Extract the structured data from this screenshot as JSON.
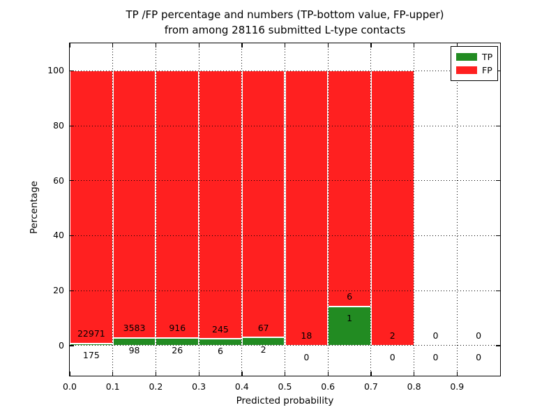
{
  "figure": {
    "title_line1": "TP /FP percentage and numbers (TP-bottom value, FP-upper)",
    "title_line2": "from among 28116 submitted L-type contacts",
    "xlabel": "Predicted probability",
    "ylabel": "Percentage"
  },
  "legend": {
    "items": [
      {
        "label": "TP",
        "color": "#228b22"
      },
      {
        "label": "FP",
        "color": "#ff2020"
      }
    ]
  },
  "chart_data": {
    "type": "bar",
    "stacked": true,
    "title": "TP /FP percentage and numbers (TP-bottom value, FP-upper) from among 28116 submitted L-type contacts",
    "total_contacts": 28116,
    "xlabel": "Predicted probability",
    "ylabel": "Percentage",
    "xlim": [
      0.0,
      1.0
    ],
    "ylim": [
      -11,
      110
    ],
    "bin_width": 0.1,
    "bin_starts": [
      0.0,
      0.1,
      0.2,
      0.3,
      0.4,
      0.5,
      0.6,
      0.7,
      0.8,
      0.9
    ],
    "xtick_labels": [
      "0.0",
      "0.1",
      "0.2",
      "0.3",
      "0.4",
      "0.5",
      "0.6",
      "0.7",
      "0.8",
      "0.9"
    ],
    "ytick_values": [
      0,
      20,
      40,
      60,
      80,
      100
    ],
    "grid": "dotted",
    "legend_position": "upper right",
    "series": [
      {
        "name": "TP",
        "color": "#228b22",
        "counts": [
          175,
          98,
          26,
          6,
          2,
          0,
          1,
          0,
          0,
          0
        ]
      },
      {
        "name": "FP",
        "color": "#ff2020",
        "counts": [
          22971,
          3583,
          916,
          245,
          67,
          18,
          6,
          2,
          0,
          0
        ]
      }
    ],
    "tp_percent_by_bin": [
      0.76,
      2.66,
      2.76,
      2.39,
      2.9,
      0.0,
      14.29,
      0.0,
      0.0,
      0.0
    ],
    "bars_top_percent": 100
  }
}
